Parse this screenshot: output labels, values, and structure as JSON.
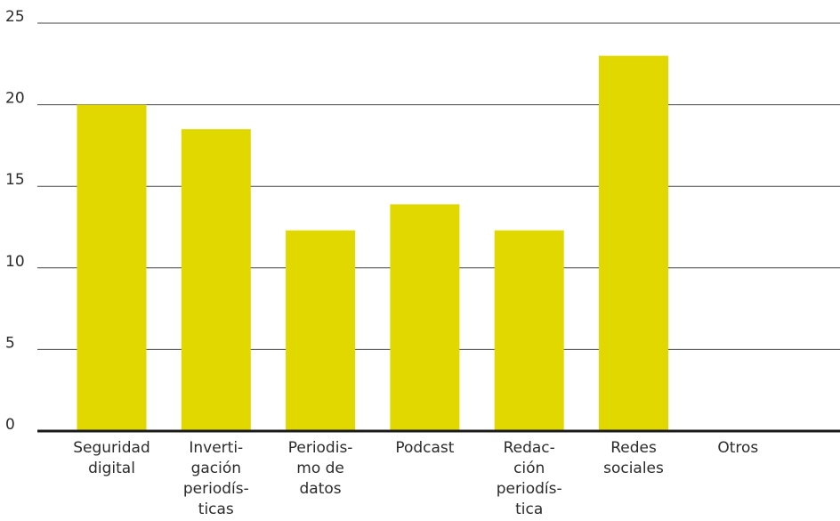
{
  "chart_data": {
    "type": "bar",
    "title": "",
    "xlabel": "",
    "ylabel": "",
    "ylim": [
      0,
      25
    ],
    "yticks": [
      0,
      5,
      10,
      15,
      20,
      25
    ],
    "grid": true,
    "bar_color": "#e1d800",
    "categories": [
      [
        "Seguridad",
        "digital"
      ],
      [
        "Inverti-",
        "gación",
        "periodís-",
        "ticas"
      ],
      [
        "Periodis-",
        "mo de",
        "datos"
      ],
      [
        "Podcast"
      ],
      [
        "Redac-",
        "ción",
        "periodís-",
        "tica"
      ],
      [
        "Redes",
        "sociales"
      ],
      [
        "Otros"
      ]
    ],
    "values": [
      20,
      18.5,
      12.3,
      13.9,
      12.3,
      23,
      0
    ]
  }
}
